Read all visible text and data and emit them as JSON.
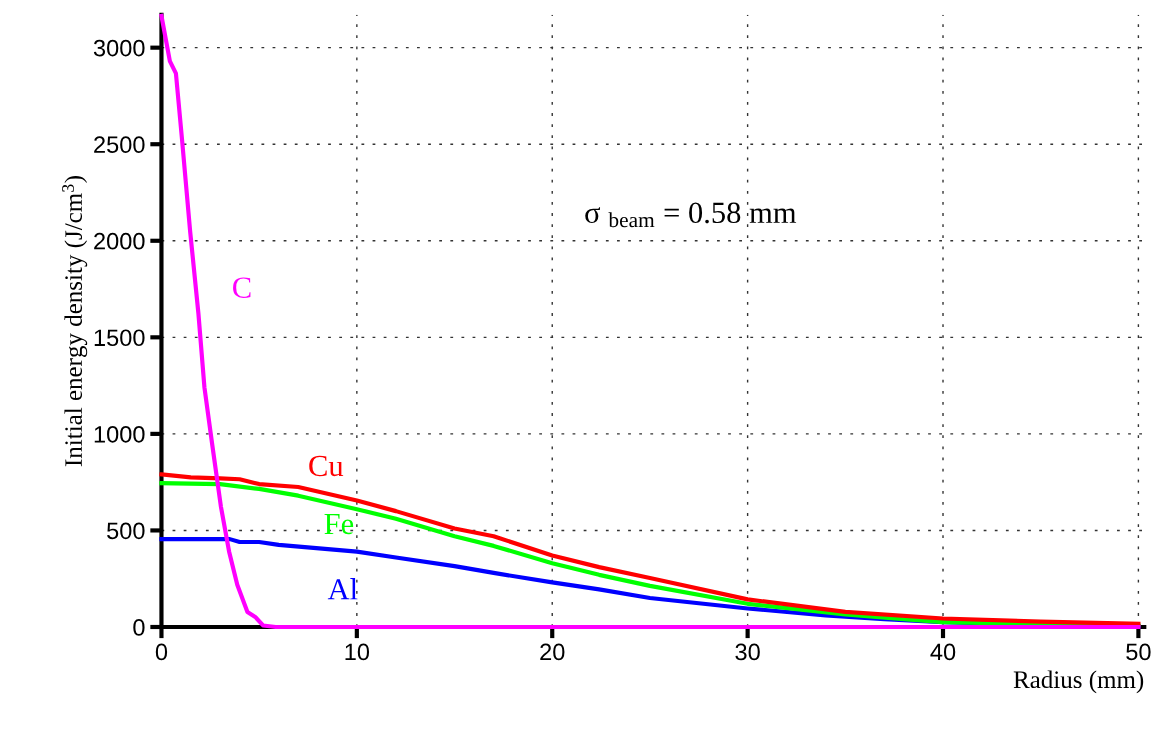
{
  "chart_data": {
    "type": "line",
    "xlabel": "Radius (mm)",
    "ylabel": "Initial energy density (J/cm$^{3}$)",
    "xlim": [
      0,
      50.3
    ],
    "ylim": [
      0,
      3170
    ],
    "xticks": [
      0,
      10,
      20,
      30,
      40,
      50
    ],
    "yticks": [
      0,
      500,
      1000,
      1500,
      2000,
      2500,
      3000
    ],
    "grid": true,
    "legend": false,
    "marker": "none",
    "line_style": "solid",
    "annotations": [
      "σ $_{beam}$ = 0.58 mm"
    ],
    "series": [
      {
        "name": "Al",
        "color": "#0000ff",
        "x": [
          0,
          3.5,
          4,
          5,
          6,
          10,
          12,
          15,
          17,
          20,
          22.4,
          25,
          30,
          34,
          37,
          40,
          45,
          50
        ],
        "values": [
          455,
          455,
          440,
          440,
          425,
          390,
          360,
          315,
          280,
          231,
          195,
          150,
          96,
          60,
          40,
          25,
          12,
          5
        ]
      },
      {
        "name": "Fe",
        "color": "#00ff00",
        "x": [
          0,
          3,
          5,
          7,
          10,
          12,
          15,
          17,
          20,
          22.4,
          25,
          30,
          35,
          38,
          40,
          45,
          50
        ],
        "values": [
          745,
          740,
          715,
          680,
          610,
          560,
          470,
          420,
          330,
          270,
          213,
          120,
          65,
          40,
          25,
          15,
          8
        ]
      },
      {
        "name": "Cu",
        "color": "#ff0000",
        "x": [
          0,
          1.5,
          3,
          4,
          5,
          7,
          10,
          12,
          15,
          17,
          20,
          22.4,
          25,
          30,
          35,
          40,
          45,
          50
        ],
        "values": [
          790,
          775,
          770,
          765,
          740,
          725,
          655,
          600,
          510,
          470,
          370,
          310,
          254,
          143,
          78,
          44,
          28,
          16
        ]
      },
      {
        "name": "C",
        "color": "#ff00ff",
        "x": [
          0,
          0.43,
          0.74,
          1.06,
          1.47,
          1.89,
          2.2,
          2.6,
          3.04,
          3.46,
          3.88,
          4.4,
          4.8,
          5.2,
          5.85,
          50
        ],
        "values": [
          3165,
          2930,
          2867,
          2516,
          2047,
          1625,
          1240,
          943,
          625,
          391,
          219,
          78,
          52,
          8,
          0,
          0
        ]
      }
    ]
  }
}
